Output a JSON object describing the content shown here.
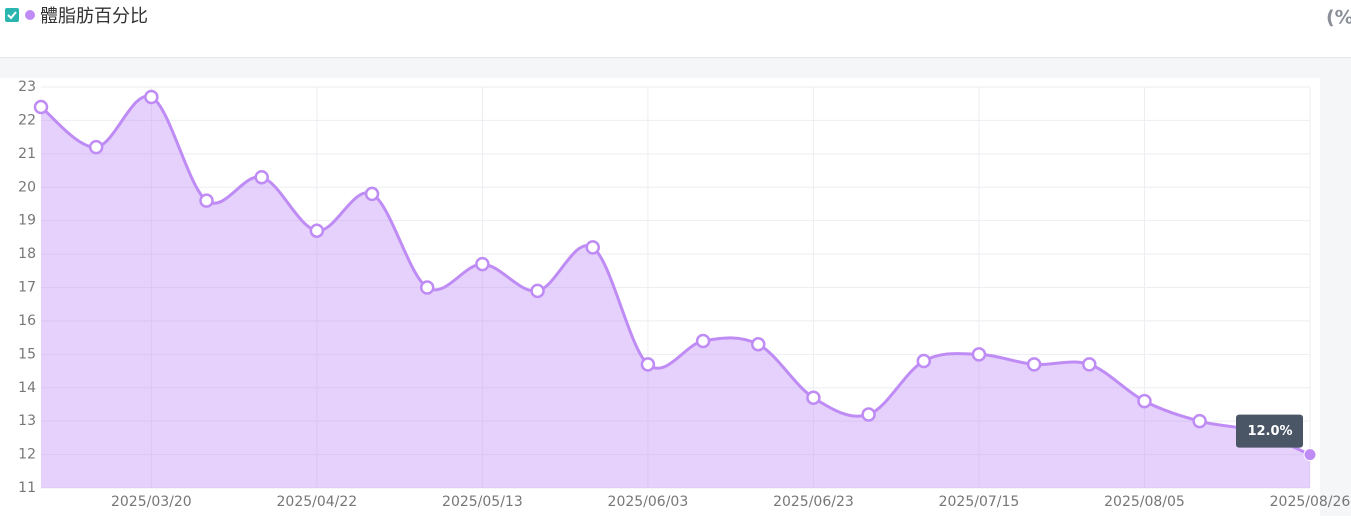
{
  "chart_data": {
    "type": "area",
    "legend_label": "體脂肪百分比",
    "unit": "(%)",
    "categories": [
      null,
      null,
      "2025/03/20",
      null,
      null,
      "2025/04/22",
      null,
      null,
      "2025/05/13",
      null,
      null,
      "2025/06/03",
      null,
      null,
      "2025/06/23",
      null,
      null,
      "2025/07/15",
      null,
      null,
      "2025/08/05",
      null,
      null,
      "2025/08/26"
    ],
    "series": [
      {
        "name": "體脂肪百分比",
        "color": "#bf8cf5",
        "values": [
          22.4,
          21.2,
          22.7,
          19.6,
          20.3,
          18.7,
          19.8,
          17.0,
          17.7,
          16.9,
          18.2,
          14.7,
          15.4,
          15.3,
          13.7,
          13.2,
          14.8,
          15.0,
          14.7,
          14.7,
          13.6,
          13.0,
          12.7,
          12.0
        ],
        "value_labels": [
          null,
          null,
          null,
          null,
          null,
          null,
          null,
          null,
          null,
          null,
          null,
          null,
          null,
          null,
          null,
          null,
          null,
          null,
          null,
          null,
          null,
          null,
          null,
          "12.0%"
        ]
      }
    ],
    "ylim": [
      11,
      23
    ],
    "yticks": [
      11,
      12,
      13,
      14,
      15,
      16,
      17,
      18,
      19,
      20,
      21,
      22,
      23
    ],
    "grid": true
  }
}
